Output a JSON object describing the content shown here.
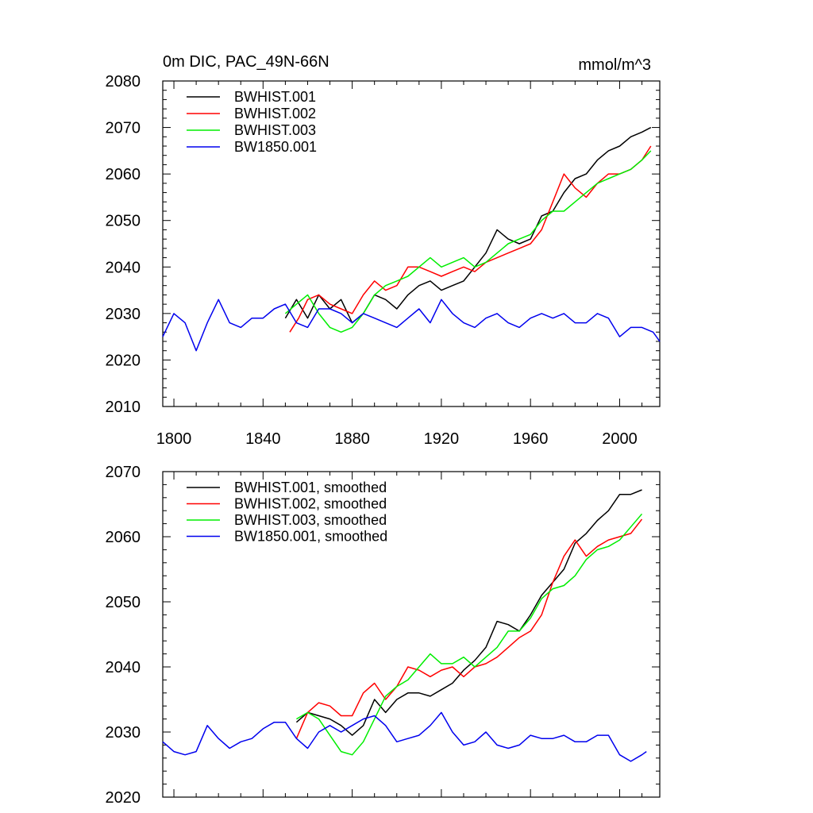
{
  "chart_data": [
    {
      "type": "line",
      "title": "0m DIC, PAC_49N-66N",
      "units": "mmol/m^3",
      "xlim": [
        1795,
        2018
      ],
      "ylim": [
        2010,
        2080
      ],
      "x_ticks": [
        "1800",
        "1840",
        "1880",
        "1920",
        "1960",
        "2000"
      ],
      "y_ticks": [
        "2010",
        "2020",
        "2030",
        "2040",
        "2050",
        "2060",
        "2070",
        "2080"
      ],
      "legend_placement": "top-left",
      "series": [
        {
          "name": "BWHIST.001",
          "color": "#000000",
          "x": [
            1850,
            1855,
            1860,
            1865,
            1870,
            1875,
            1880,
            1885,
            1890,
            1895,
            1900,
            1905,
            1910,
            1915,
            1920,
            1925,
            1930,
            1935,
            1940,
            1945,
            1950,
            1955,
            1960,
            1965,
            1970,
            1975,
            1980,
            1985,
            1990,
            1995,
            2000,
            2005,
            2010,
            2014
          ],
          "y": [
            2029,
            2033,
            2029,
            2034,
            2031,
            2033,
            2028,
            2030,
            2034,
            2033,
            2031,
            2034,
            2036,
            2037,
            2035,
            2036,
            2037,
            2040,
            2043,
            2048,
            2046,
            2045,
            2046,
            2051,
            2052,
            2056,
            2059,
            2060,
            2063,
            2065,
            2066,
            2068,
            2069,
            2070
          ]
        },
        {
          "name": "BWHIST.002",
          "color": "#ff0000",
          "x": [
            1852,
            1856,
            1860,
            1865,
            1870,
            1875,
            1880,
            1885,
            1890,
            1895,
            1900,
            1905,
            1910,
            1915,
            1920,
            1925,
            1930,
            1935,
            1940,
            1945,
            1950,
            1955,
            1960,
            1965,
            1970,
            1975,
            1980,
            1985,
            1990,
            1995,
            2000,
            2005,
            2010,
            2014
          ],
          "y": [
            2026,
            2029,
            2033,
            2034,
            2032,
            2031,
            2030,
            2034,
            2037,
            2035,
            2036,
            2040,
            2040,
            2039,
            2038,
            2039,
            2040,
            2039,
            2041,
            2042,
            2043,
            2044,
            2045,
            2048,
            2054,
            2060,
            2057,
            2055,
            2058,
            2060,
            2060,
            2061,
            2063,
            2066
          ]
        },
        {
          "name": "BWHIST.003",
          "color": "#00ee00",
          "x": [
            1850,
            1855,
            1860,
            1865,
            1870,
            1875,
            1880,
            1885,
            1890,
            1895,
            1900,
            1905,
            1910,
            1915,
            1920,
            1925,
            1930,
            1935,
            1940,
            1945,
            1950,
            1955,
            1960,
            1965,
            1970,
            1975,
            1980,
            1985,
            1990,
            1995,
            2000,
            2005,
            2010,
            2014
          ],
          "y": [
            2030,
            2032,
            2034,
            2030,
            2027,
            2026,
            2027,
            2030,
            2034,
            2036,
            2037,
            2038,
            2040,
            2042,
            2040,
            2041,
            2042,
            2040,
            2041,
            2043,
            2045,
            2046,
            2047,
            2050,
            2052,
            2052,
            2054,
            2056,
            2058,
            2059,
            2060,
            2061,
            2063,
            2065
          ]
        },
        {
          "name": "BW1850.001",
          "color": "#0000ee",
          "x": [
            1795,
            1800,
            1805,
            1810,
            1815,
            1820,
            1825,
            1830,
            1835,
            1840,
            1845,
            1850,
            1855,
            1860,
            1865,
            1870,
            1875,
            1880,
            1885,
            1890,
            1895,
            1900,
            1905,
            1910,
            1915,
            1920,
            1925,
            1930,
            1935,
            1940,
            1945,
            1950,
            1955,
            1960,
            1965,
            1970,
            1975,
            1980,
            1985,
            1990,
            1995,
            2000,
            2005,
            2010,
            2015,
            2018
          ],
          "y": [
            2025,
            2030,
            2028,
            2022,
            2028,
            2033,
            2028,
            2027,
            2029,
            2029,
            2031,
            2032,
            2028,
            2027,
            2031,
            2031,
            2030,
            2028,
            2030,
            2029,
            2028,
            2027,
            2029,
            2031,
            2028,
            2033,
            2030,
            2028,
            2027,
            2029,
            2030,
            2028,
            2027,
            2029,
            2030,
            2029,
            2030,
            2028,
            2028,
            2030,
            2029,
            2025,
            2027,
            2027,
            2026,
            2024
          ]
        }
      ]
    },
    {
      "type": "line",
      "xlim": [
        1795,
        2018
      ],
      "ylim": [
        2020,
        2070
      ],
      "y_ticks": [
        "2020",
        "2030",
        "2040",
        "2050",
        "2060",
        "2070"
      ],
      "legend_placement": "top-left",
      "series": [
        {
          "name": "BWHIST.001, smoothed",
          "color": "#000000",
          "x": [
            1855,
            1860,
            1865,
            1870,
            1875,
            1880,
            1885,
            1890,
            1895,
            1900,
            1905,
            1910,
            1915,
            1920,
            1925,
            1930,
            1935,
            1940,
            1945,
            1950,
            1955,
            1960,
            1965,
            1970,
            1975,
            1980,
            1985,
            1990,
            1995,
            2000,
            2005,
            2010
          ],
          "y": [
            2031.5,
            2033,
            2032.5,
            2032,
            2031,
            2029.5,
            2031,
            2035,
            2033,
            2035,
            2036,
            2036,
            2035.5,
            2036.5,
            2037.5,
            2039.5,
            2041,
            2043,
            2047,
            2046.5,
            2045.5,
            2048,
            2051,
            2053,
            2055,
            2059,
            2060.5,
            2062.5,
            2064,
            2066.5,
            2066.5,
            2067.2
          ]
        },
        {
          "name": "BWHIST.002, smoothed",
          "color": "#ff0000",
          "x": [
            1855,
            1860,
            1865,
            1870,
            1875,
            1880,
            1885,
            1890,
            1895,
            1900,
            1905,
            1910,
            1915,
            1920,
            1925,
            1930,
            1935,
            1940,
            1945,
            1950,
            1955,
            1960,
            1965,
            1970,
            1975,
            1980,
            1985,
            1990,
            1995,
            2000,
            2005,
            2010
          ],
          "y": [
            2029,
            2033,
            2034.5,
            2034,
            2032.5,
            2032.5,
            2036,
            2037.5,
            2035,
            2037,
            2040,
            2039.5,
            2038.5,
            2039.5,
            2040,
            2038.5,
            2040,
            2040.5,
            2041.5,
            2043,
            2044.5,
            2045.5,
            2048,
            2053,
            2057,
            2059.5,
            2057,
            2058.5,
            2059.5,
            2060,
            2060.5,
            2062.7
          ]
        },
        {
          "name": "BWHIST.003, smoothed",
          "color": "#00ee00",
          "x": [
            1855,
            1860,
            1865,
            1870,
            1875,
            1880,
            1885,
            1890,
            1895,
            1900,
            1905,
            1910,
            1915,
            1920,
            1925,
            1930,
            1935,
            1940,
            1945,
            1950,
            1955,
            1960,
            1965,
            1970,
            1975,
            1980,
            1985,
            1990,
            1995,
            2000,
            2005,
            2010
          ],
          "y": [
            2032,
            2033,
            2032,
            2029.5,
            2027,
            2026.5,
            2028.5,
            2032,
            2035.5,
            2037,
            2038,
            2040,
            2042,
            2040.5,
            2040.5,
            2041.5,
            2040,
            2041.5,
            2043,
            2045.5,
            2045.5,
            2047.5,
            2050.5,
            2052,
            2052.5,
            2054,
            2056.5,
            2058,
            2058.5,
            2059.5,
            2061.5,
            2063.5
          ]
        },
        {
          "name": "BW1850.001, smoothed",
          "color": "#0000ee",
          "x": [
            1795,
            1800,
            1805,
            1810,
            1815,
            1820,
            1825,
            1830,
            1835,
            1840,
            1845,
            1850,
            1855,
            1860,
            1865,
            1870,
            1875,
            1880,
            1885,
            1890,
            1895,
            1900,
            1905,
            1910,
            1915,
            1920,
            1925,
            1930,
            1935,
            1940,
            1945,
            1950,
            1955,
            1960,
            1965,
            1970,
            1975,
            1980,
            1985,
            1990,
            1995,
            2000,
            2005,
            2010,
            2012
          ],
          "y": [
            2028.5,
            2027,
            2026.5,
            2027,
            2031,
            2029,
            2027.5,
            2028.5,
            2029,
            2030.5,
            2031.5,
            2031.5,
            2029,
            2027.5,
            2030,
            2031,
            2030,
            2031,
            2032,
            2032.5,
            2031,
            2028.5,
            2029,
            2029.5,
            2031,
            2033,
            2030,
            2028,
            2028.5,
            2030,
            2028,
            2027.5,
            2028,
            2029.5,
            2029,
            2029,
            2029.5,
            2028.5,
            2028.5,
            2029.5,
            2029.5,
            2026.5,
            2025.5,
            2026.5,
            2027
          ]
        }
      ]
    }
  ]
}
